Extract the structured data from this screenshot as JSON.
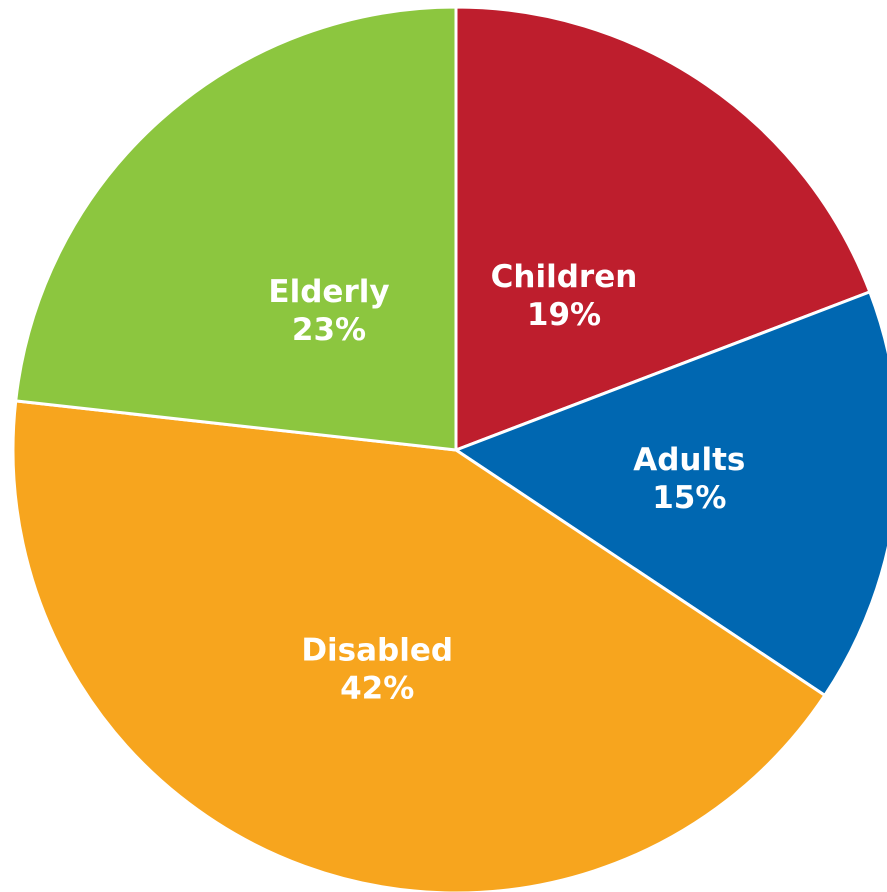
{
  "chart_data": {
    "type": "pie",
    "start": "top",
    "direction": "clockwise",
    "slices": [
      {
        "label": "Children",
        "value": 19,
        "display": "19%",
        "color": "#BE1E2D"
      },
      {
        "label": "Adults",
        "value": 15,
        "display": "15%",
        "color": "#0067B1"
      },
      {
        "label": "Disabled",
        "value": 42,
        "display": "42%",
        "color": "#F7A51E"
      },
      {
        "label": "Elderly",
        "value": 23,
        "display": "23%",
        "color": "#8CC63F"
      }
    ]
  }
}
